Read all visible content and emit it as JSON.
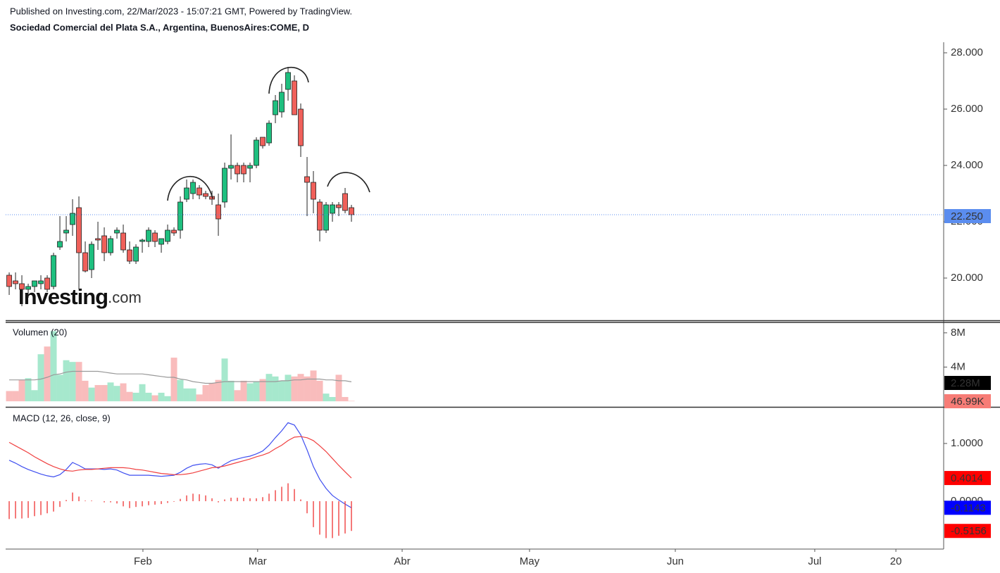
{
  "header": {
    "published": "Published on Investing.com, 22/Mar/2023 - 15:07:21 GMT, Powered by TradingView.",
    "title": "Sociedad Comercial del Plata S.A., Argentina, BuenosAires:COME, D"
  },
  "watermark": {
    "brand": "Investing",
    "suffix": ".com"
  },
  "chart_data": [
    {
      "type": "candlestick",
      "up_color": "#1fbf7f",
      "down_color": "#f0605a",
      "open": [
        20.1,
        19.9,
        19.8,
        19.6,
        19.7,
        19.8,
        20.0,
        19.7,
        21.1,
        21.6,
        21.9,
        22.5,
        20.9,
        20.3,
        21.4,
        21.5,
        20.9,
        21.6,
        21.6,
        21.0,
        20.6,
        21.3,
        21.3,
        21.6,
        21.2,
        21.3,
        21.7,
        21.7,
        22.8,
        23.0,
        23.2,
        23.0,
        22.9,
        22.6,
        22.7,
        23.9,
        24.0,
        24.0,
        23.9,
        24.0,
        25.0,
        24.8,
        25.8,
        25.9,
        26.7,
        27.0,
        26.0,
        23.6,
        23.4,
        22.7,
        21.7,
        22.3,
        22.6,
        23.0,
        22.5
      ],
      "high": [
        20.2,
        20.2,
        20.1,
        19.8,
        19.9,
        20.1,
        20.1,
        20.9,
        22.2,
        22.2,
        22.8,
        22.9,
        21.3,
        21.3,
        22.0,
        21.8,
        21.5,
        21.8,
        21.9,
        21.3,
        21.2,
        21.4,
        21.8,
        21.7,
        21.4,
        21.9,
        21.8,
        22.9,
        23.5,
        23.5,
        23.3,
        23.1,
        23.1,
        23.0,
        24.1,
        25.1,
        24.1,
        24.1,
        24.1,
        25.0,
        25.0,
        25.6,
        26.5,
        26.9,
        27.5,
        27.2,
        26.2,
        24.3,
        23.8,
        22.8,
        22.7,
        22.7,
        22.7,
        23.2,
        22.6
      ],
      "low": [
        19.4,
        19.6,
        19.0,
        19.3,
        19.5,
        19.6,
        19.5,
        19.6,
        21.0,
        21.3,
        21.5,
        19.6,
        20.2,
        20.0,
        21.0,
        20.6,
        20.8,
        21.4,
        20.9,
        20.5,
        20.5,
        20.9,
        21.1,
        21.1,
        20.9,
        21.2,
        21.5,
        21.4,
        22.7,
        22.8,
        22.8,
        22.8,
        22.6,
        21.5,
        22.5,
        23.5,
        23.4,
        23.4,
        23.4,
        23.9,
        24.6,
        24.7,
        25.5,
        25.7,
        26.3,
        25.8,
        24.3,
        22.2,
        22.3,
        21.3,
        21.6,
        22.0,
        22.2,
        22.3,
        22.0
      ],
      "close": [
        19.7,
        19.8,
        19.6,
        19.7,
        19.9,
        19.9,
        19.6,
        20.8,
        21.3,
        21.7,
        22.3,
        20.9,
        20.25,
        21.2,
        21.35,
        20.9,
        21.4,
        21.7,
        21.0,
        20.6,
        21.1,
        21.35,
        21.7,
        21.3,
        21.4,
        21.7,
        21.6,
        22.7,
        23.2,
        23.4,
        22.95,
        22.9,
        22.8,
        22.1,
        23.9,
        24.0,
        23.7,
        23.7,
        24.0,
        24.9,
        24.7,
        25.5,
        26.3,
        26.6,
        27.3,
        25.8,
        24.7,
        23.4,
        22.8,
        21.7,
        22.6,
        22.6,
        22.5,
        22.4,
        22.25
      ],
      "last": {
        "value": 22.25,
        "label": "22.250"
      },
      "last_color": "#5b8def",
      "ylim": [
        18.5,
        28.375
      ],
      "yticks": [
        {
          "value": 20,
          "label": "20.000"
        },
        {
          "value": 22,
          "label": "22.000"
        },
        {
          "value": 24,
          "label": "24.000"
        },
        {
          "value": 26,
          "label": "26.000"
        },
        {
          "value": 28,
          "label": "28.000"
        }
      ]
    },
    {
      "type": "bar",
      "title": "Volumen (20)",
      "up_color": "#a6e8cd",
      "down_color": "#f9bcbc",
      "values": [
        1200000,
        1200000,
        2500000,
        2700000,
        1300000,
        5500000,
        6400000,
        8200000,
        3100000,
        4800000,
        4600000,
        4600000,
        2400000,
        1600000,
        1900000,
        1900000,
        2200000,
        1800000,
        2100000,
        1100000,
        1000000,
        2000000,
        1000000,
        700000,
        1000000,
        600000,
        5100000,
        2500000,
        1500000,
        1500000,
        800000,
        1900000,
        2100000,
        2500000,
        5000000,
        2400000,
        1300000,
        2400000,
        2100000,
        2300000,
        2600000,
        3200000,
        2900000,
        2400000,
        3100000,
        2900000,
        3200000,
        2900000,
        3600000,
        2400000,
        900000,
        500000,
        3100000,
        500000,
        46990
      ],
      "last_label": "46.99K",
      "last_color": "#f77c76",
      "series": [
        {
          "name": "Volumen (20)",
          "color": "#999999",
          "last_label": "2.28M",
          "last_color": "#000000",
          "values": [
            2500000,
            2500000,
            2500000,
            2500000,
            2500000,
            2600000,
            2800000,
            3100000,
            3200000,
            3400000,
            3500000,
            3500000,
            3500000,
            3500000,
            3500000,
            3400000,
            3300000,
            3200000,
            3200000,
            3200000,
            3200000,
            3200000,
            3100000,
            3000000,
            2900000,
            2800000,
            2800000,
            2600000,
            2500000,
            2300000,
            2200000,
            2100000,
            2100000,
            2200000,
            2300000,
            2300000,
            2300000,
            2300000,
            2300000,
            2300000,
            2300000,
            2300000,
            2300000,
            2400000,
            2400000,
            2500000,
            2500000,
            2600000,
            2600000,
            2600000,
            2500000,
            2500000,
            2400000,
            2400000,
            2280000
          ]
        }
      ],
      "ylim": [
        -570000,
        9220000
      ],
      "yticks": [
        {
          "value": 4000000,
          "label": "4M"
        },
        {
          "value": 8000000,
          "label": "8M"
        }
      ]
    },
    {
      "type": "line",
      "title": "MACD (12, 26, close, 9)",
      "series": [
        {
          "name": "MACD",
          "color": "#3f4ff0",
          "last_label": "-0.1143",
          "values": [
            0.71,
            0.66,
            0.6,
            0.55,
            0.51,
            0.47,
            0.44,
            0.42,
            0.46,
            0.55,
            0.67,
            0.62,
            0.56,
            0.56,
            0.56,
            0.55,
            0.56,
            0.54,
            0.49,
            0.45,
            0.45,
            0.45,
            0.45,
            0.44,
            0.43,
            0.44,
            0.45,
            0.5,
            0.57,
            0.62,
            0.64,
            0.65,
            0.63,
            0.57,
            0.64,
            0.7,
            0.73,
            0.76,
            0.78,
            0.82,
            0.87,
            0.97,
            1.1,
            1.22,
            1.36,
            1.32,
            1.15,
            0.89,
            0.6,
            0.38,
            0.22,
            0.1,
            0.02,
            -0.05,
            -0.1143
          ],
          "label_color": "#0000ff"
        },
        {
          "name": "Signal",
          "color": "#f04040",
          "last_label": "0.4014",
          "values": [
            1.02,
            0.96,
            0.9,
            0.84,
            0.77,
            0.71,
            0.65,
            0.6,
            0.56,
            0.53,
            0.52,
            0.54,
            0.55,
            0.55,
            0.56,
            0.57,
            0.58,
            0.58,
            0.58,
            0.57,
            0.55,
            0.54,
            0.52,
            0.5,
            0.48,
            0.47,
            0.46,
            0.46,
            0.47,
            0.49,
            0.52,
            0.55,
            0.58,
            0.59,
            0.61,
            0.64,
            0.67,
            0.7,
            0.73,
            0.77,
            0.8,
            0.84,
            0.91,
            0.97,
            1.05,
            1.11,
            1.12,
            1.1,
            1.05,
            0.96,
            0.86,
            0.74,
            0.62,
            0.51,
            0.4014
          ],
          "label_color": "#ff0000"
        },
        {
          "name": "Histogram",
          "color": "#f04040",
          "type": "bar",
          "last_label": "-0.5156",
          "values": [
            -0.31,
            -0.3,
            -0.3,
            -0.29,
            -0.26,
            -0.24,
            -0.21,
            -0.18,
            -0.1,
            0.02,
            0.15,
            0.08,
            0.01,
            0.01,
            0,
            -0.02,
            -0.02,
            -0.04,
            -0.09,
            -0.12,
            -0.1,
            -0.09,
            -0.07,
            -0.06,
            -0.05,
            -0.03,
            -0.01,
            0.04,
            0.1,
            0.13,
            0.12,
            0.1,
            0.05,
            -0.02,
            0.03,
            0.06,
            0.06,
            0.06,
            0.05,
            0.05,
            0.07,
            0.13,
            0.19,
            0.25,
            0.31,
            0.21,
            0.03,
            -0.21,
            -0.45,
            -0.58,
            -0.64,
            -0.64,
            -0.6,
            -0.56,
            -0.5156
          ],
          "label_color": "#ff0000"
        }
      ],
      "ylim": [
        -0.83,
        1.61
      ],
      "yticks": [
        {
          "value": 0,
          "label": "0.0000"
        },
        {
          "value": 1,
          "label": "1.0000"
        }
      ],
      "xlim": [
        -0.56,
        147.44
      ],
      "xticks": [
        {
          "value": 21.1,
          "label": "Feb"
        },
        {
          "value": 39.2,
          "label": "Mar"
        },
        {
          "value": 62,
          "label": "Abr"
        },
        {
          "value": 82.1,
          "label": "May"
        },
        {
          "value": 105.1,
          "label": "Jun"
        },
        {
          "value": 127.1,
          "label": "Jul"
        },
        {
          "value": 139.9,
          "label": "20"
        }
      ]
    }
  ]
}
